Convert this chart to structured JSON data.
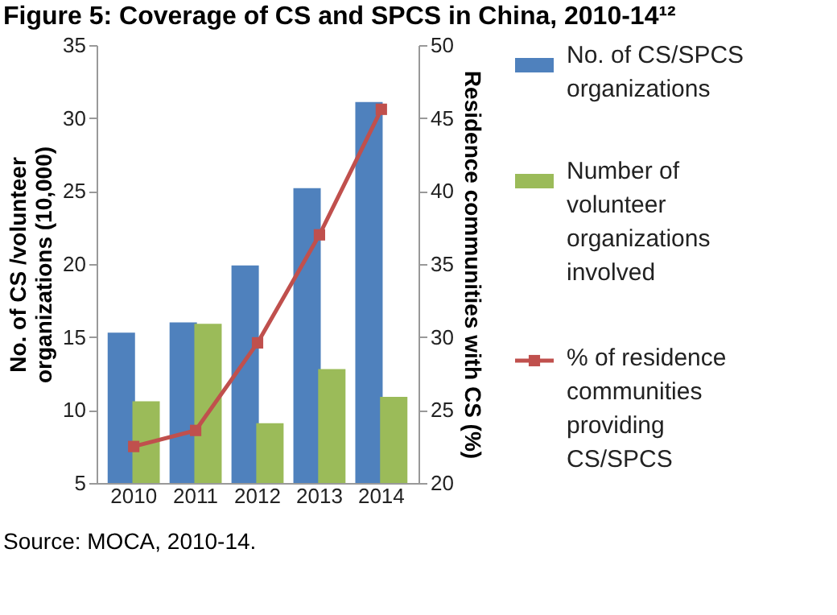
{
  "chart_data": {
    "type": "bar",
    "title": "Figure 5: Coverage of CS and SPCS in China, 2010-14¹²",
    "ylabel": "No. of CS /volunteer organizations (10,000)",
    "y2label": "Residence communities with CS  (%)",
    "annotations": [
      "Source: MOCA, 2010-14."
    ],
    "categories": [
      "2010",
      "2011",
      "2012",
      "2013",
      "2014"
    ],
    "series": [
      {
        "name": "No. of CS/SPCS organizations",
        "color": "#4f81bd",
        "values": [
          15.3,
          16.0,
          19.9,
          25.2,
          31.1
        ]
      },
      {
        "name": "Number of volunteer organizations involved",
        "color": "#9bbb59",
        "values": [
          10.6,
          15.9,
          9.1,
          12.8,
          10.9
        ]
      },
      {
        "name": "% of residence communities providing CS/SPCS",
        "color": "#c0504d",
        "type": "line",
        "axis": "y2",
        "marker": "square",
        "values": [
          22.5,
          23.6,
          29.6,
          37.0,
          45.6
        ]
      }
    ],
    "ylim": [
      5,
      35
    ],
    "yticks": [
      5,
      10,
      15,
      20,
      25,
      30,
      35
    ],
    "y2lim": [
      20,
      50
    ],
    "y2ticks": [
      20,
      25,
      30,
      35,
      40,
      45,
      50
    ],
    "grid": false,
    "legend": "right"
  }
}
